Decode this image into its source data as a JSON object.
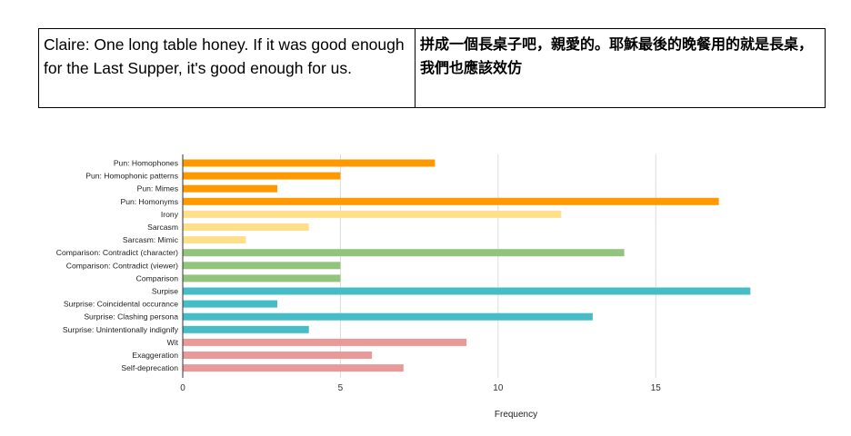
{
  "quote": {
    "english": "Claire: One long table honey. If it was good enough for the Last Supper, it's good enough for us.",
    "chinese": "拼成一個長桌子吧，親愛的。耶穌最後的晚餐用的就是長桌，我們也應該效仿"
  },
  "chart_data": {
    "type": "bar",
    "orientation": "horizontal",
    "title": "",
    "xlabel": "Frequency",
    "ylabel": "",
    "xlim": [
      0,
      19
    ],
    "xticks": [
      0,
      5,
      10,
      15
    ],
    "grid": true,
    "legend": "none",
    "categories": [
      "Pun: Homophones",
      "Pun: Homophonic patterns",
      "Pun: Mimes",
      "Pun: Homonyms",
      "Irony",
      "Sarcasm",
      "Sarcasm: Mimic",
      "Comparison: Contradict (character)",
      "Comparison: Contradict (viewer)",
      "Comparison",
      "Surpise",
      "Surprise: Coincidental occurance",
      "Surprise: Clashing persona",
      "Surprise: Unintentionally indignify",
      "Wit",
      "Exaggeration",
      "Self-deprecation"
    ],
    "values": [
      8,
      5,
      3,
      17,
      12,
      4,
      2,
      14,
      5,
      5,
      18,
      3,
      13,
      4,
      9,
      6,
      7
    ],
    "colors": [
      "#ff9900",
      "#ff9900",
      "#ff9900",
      "#ff9900",
      "#ffe08a",
      "#ffe08a",
      "#ffe08a",
      "#93c47d",
      "#93c47d",
      "#93c47d",
      "#46bdc6",
      "#46bdc6",
      "#46bdc6",
      "#46bdc6",
      "#ea9999",
      "#ea9999",
      "#ea9999"
    ]
  }
}
